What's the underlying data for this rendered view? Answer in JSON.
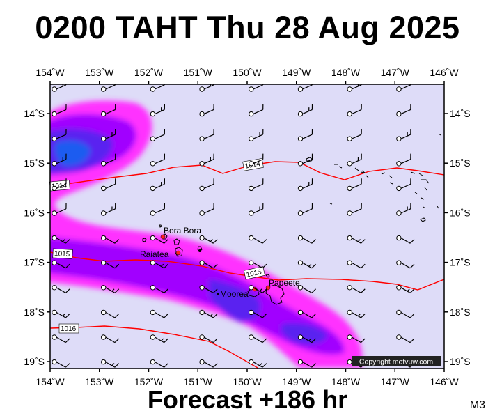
{
  "title": "0200 TAHT Thu 28 Aug 2025",
  "footer": "Forecast +186 hr",
  "corner_label": "M3",
  "copyright": "Copyright metvuw.com",
  "colors": {
    "background": "#dedcf8",
    "isobar": "#ff0000",
    "rain_light": "#ff33ff",
    "rain_medium": "#a100ff",
    "rain_heavy": "#5a20f0",
    "rain_peak": "#1e5cf0"
  },
  "axes": {
    "lon_labels": [
      "154˚W",
      "153˚W",
      "152˚W",
      "151˚W",
      "150˚W",
      "149˚W",
      "148˚W",
      "147˚W",
      "146˚W"
    ],
    "lat_labels": [
      "14˚S",
      "15˚S",
      "16˚S",
      "17˚S",
      "18˚S",
      "19˚S"
    ]
  },
  "islands": [
    {
      "name": "Bora Bora"
    },
    {
      "name": "Raiatea"
    },
    {
      "name": "Moorea"
    },
    {
      "name": "Papeete"
    }
  ],
  "isobars": [
    {
      "label": "1014"
    },
    {
      "label": "1014"
    },
    {
      "label": "1015"
    },
    {
      "label": "1015"
    },
    {
      "label": "1016"
    }
  ]
}
